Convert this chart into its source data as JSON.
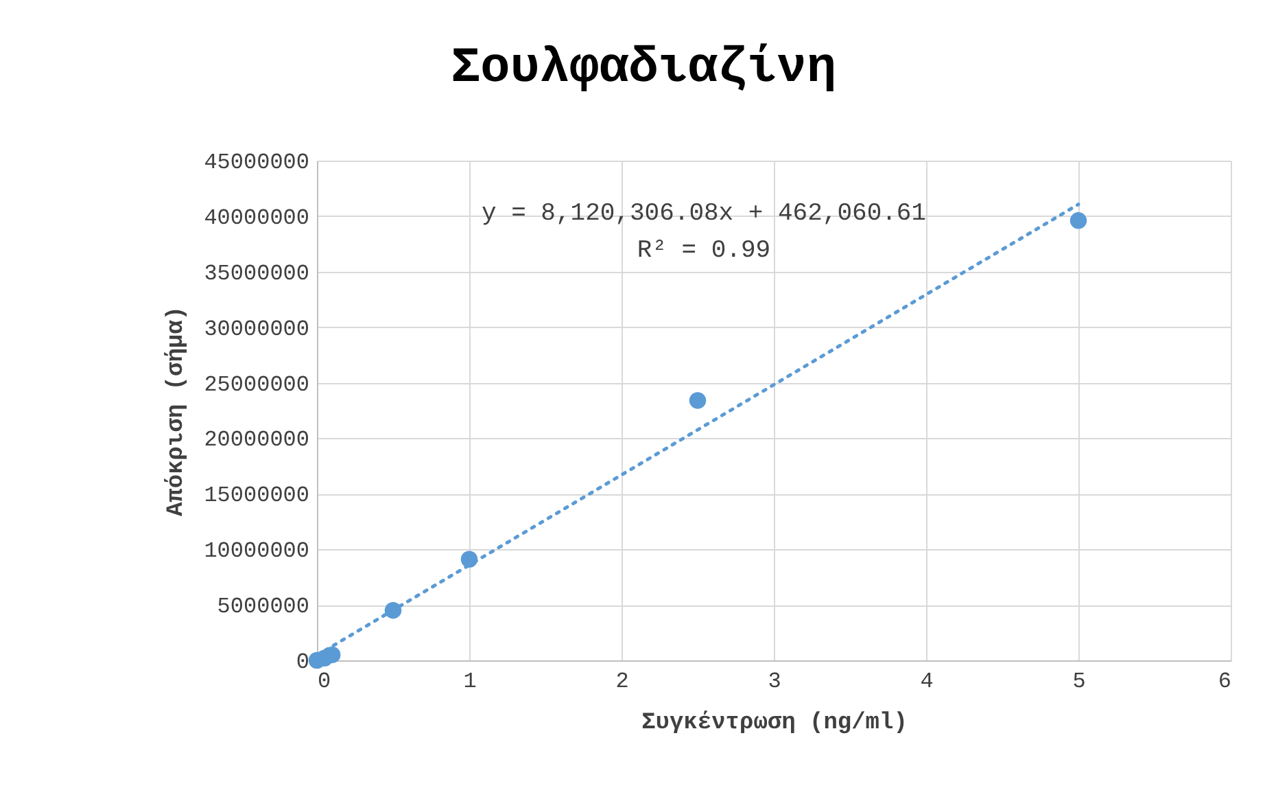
{
  "chart_data": {
    "type": "scatter",
    "title": "Σουλφαδιαζίνη",
    "xlabel": "Συγκέντρωση (ng/ml)",
    "ylabel": "Απόκριση (σήμα)",
    "annotations": [
      "y = 8,120,306.08x + 462,060.61",
      "R² = 0.99"
    ],
    "series": [
      {
        "color": "#5b9bd5",
        "x": [
          0,
          0.05,
          0.1,
          0.5,
          1,
          2.5,
          5
        ],
        "values": [
          0,
          200000,
          500000,
          4500000,
          9100000,
          23400000,
          39600000
        ],
        "marker": "circle"
      },
      {
        "type": "line",
        "color": "#5b9bd5",
        "x": [
          0,
          5
        ],
        "values": [
          460000,
          41060000
        ],
        "line_style": "dotted"
      }
    ],
    "xlim": [
      0,
      6
    ],
    "xticks": [
      0,
      1,
      2,
      3,
      4,
      5,
      6
    ],
    "ylim": [
      0,
      45000000
    ],
    "yticks": [
      0,
      5000000,
      10000000,
      15000000,
      20000000,
      25000000,
      30000000,
      35000000,
      40000000,
      45000000
    ],
    "grid": true
  }
}
